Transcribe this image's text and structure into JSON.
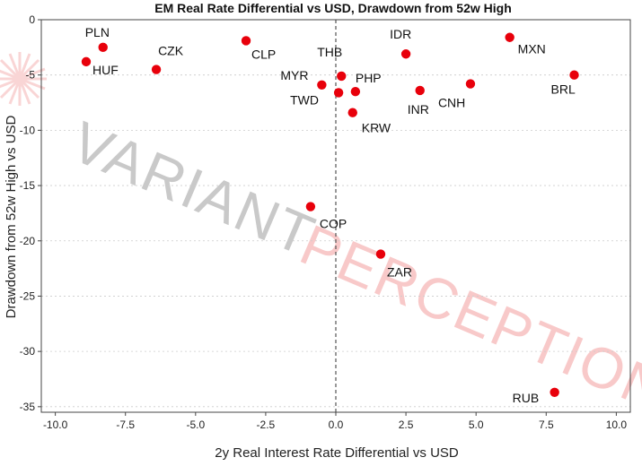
{
  "chart_data": {
    "type": "scatter",
    "title": "EM Real Rate Differential vs USD, Drawdown from 52w High",
    "xlabel": "2y Real Interest Rate Differential vs USD",
    "ylabel": "Drawdown from 52w High vs USD",
    "xlim": [
      -10.5,
      10.5
    ],
    "ylim": [
      -35.5,
      0
    ],
    "xticks": [
      -10.0,
      -7.5,
      -5.0,
      -2.5,
      0.0,
      2.5,
      5.0,
      7.5,
      10.0
    ],
    "xtick_labels": [
      "-10.0",
      "-7.5",
      "-5.0",
      "-2.5",
      "0.0",
      "2.5",
      "5.0",
      "7.5",
      "10.0"
    ],
    "yticks": [
      0,
      -5,
      -10,
      -15,
      -20,
      -25,
      -30,
      -35
    ],
    "ytick_labels": [
      "0",
      "-5",
      "-10",
      "-15",
      "-20",
      "-25",
      "-30",
      "-35"
    ],
    "grid": "horizontal-dotted",
    "vline_x": 0,
    "marker_color": "#e8000b",
    "points": [
      {
        "label": "PLN",
        "x": -8.3,
        "y": -2.5
      },
      {
        "label": "HUF",
        "x": -8.9,
        "y": -3.8
      },
      {
        "label": "CZK",
        "x": -6.4,
        "y": -4.5
      },
      {
        "label": "CLP",
        "x": -3.2,
        "y": -1.9
      },
      {
        "label": "MYR",
        "x": -0.5,
        "y": -5.9
      },
      {
        "label": "TWD",
        "x": 0.1,
        "y": -6.6
      },
      {
        "label": "THB",
        "x": 0.2,
        "y": -5.1
      },
      {
        "label": "PHP",
        "x": 0.7,
        "y": -6.5
      },
      {
        "label": "KRW",
        "x": 0.6,
        "y": -8.4
      },
      {
        "label": "IDR",
        "x": 2.5,
        "y": -3.1
      },
      {
        "label": "INR",
        "x": 3.0,
        "y": -6.4
      },
      {
        "label": "CNH",
        "x": 4.8,
        "y": -5.8
      },
      {
        "label": "MXN",
        "x": 6.2,
        "y": -1.6
      },
      {
        "label": "BRL",
        "x": 8.5,
        "y": -5.0
      },
      {
        "label": "COP",
        "x": -0.9,
        "y": -16.9
      },
      {
        "label": "ZAR",
        "x": 1.6,
        "y": -21.2
      },
      {
        "label": "RUB",
        "x": 7.8,
        "y": -33.7
      }
    ]
  },
  "watermark": {
    "brand_dark": "VARIANT",
    "brand_red": "PERCEPTION"
  }
}
